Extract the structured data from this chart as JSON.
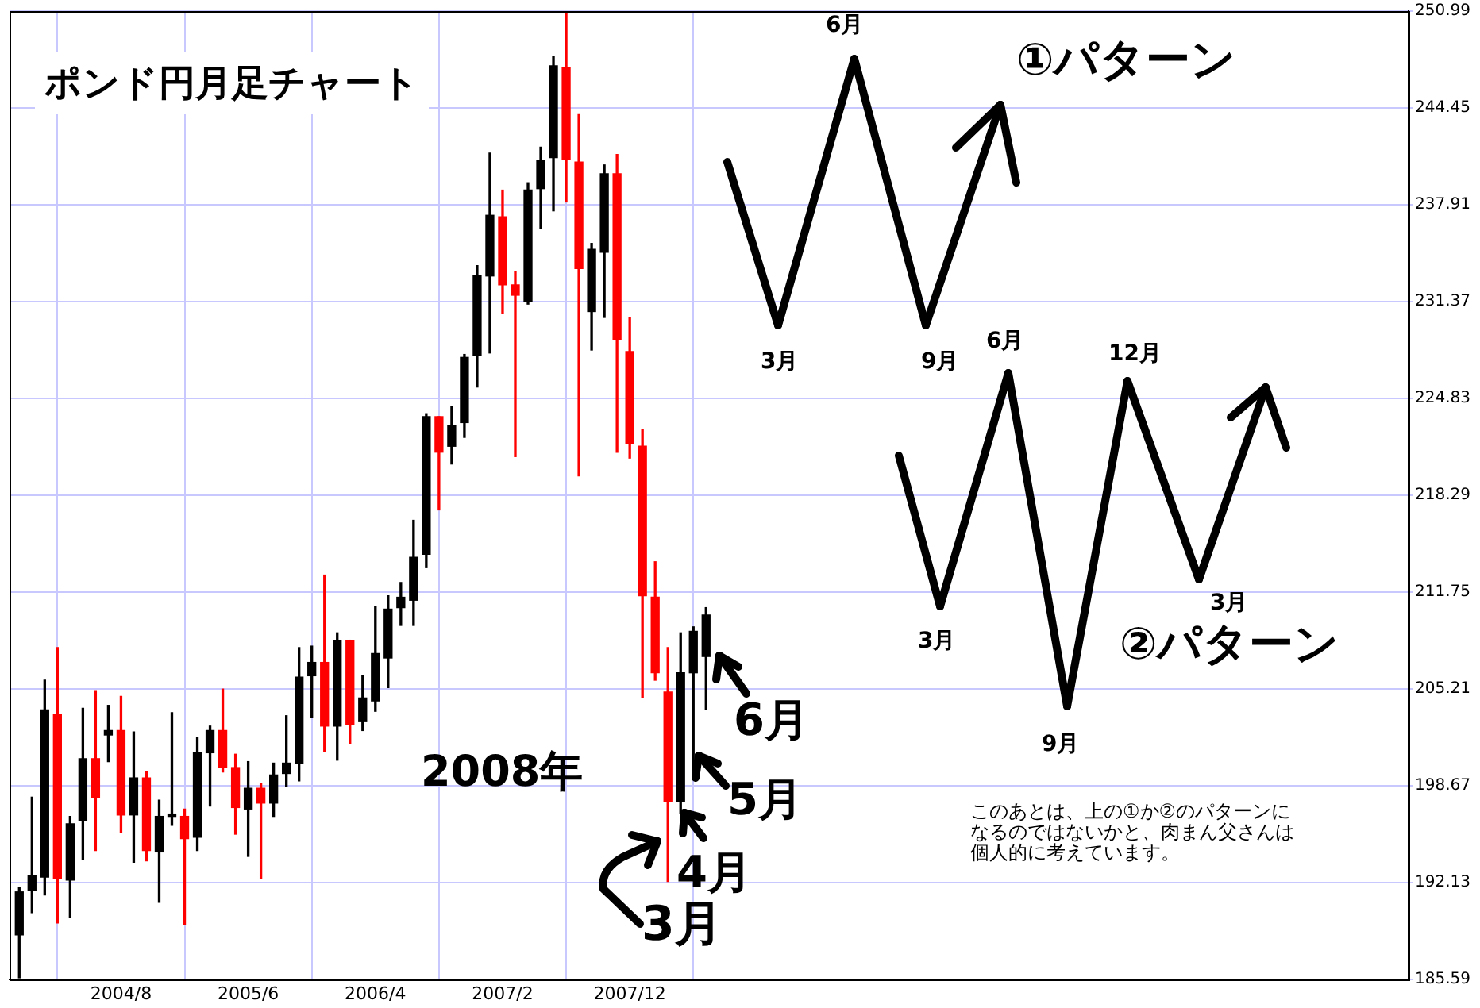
{
  "chart_data": {
    "type": "candlestick",
    "title": "ポンド円月足チャート",
    "x": [
      "2003-12",
      "2004-01",
      "2004-02",
      "2004-03",
      "2004-04",
      "2004-05",
      "2004-06",
      "2004-07",
      "2004-08",
      "2004-09",
      "2004-10",
      "2004-11",
      "2004-12",
      "2005-01",
      "2005-02",
      "2005-03",
      "2005-04",
      "2005-05",
      "2005-06",
      "2005-07",
      "2005-08",
      "2005-09",
      "2005-10",
      "2005-11",
      "2005-12",
      "2006-01",
      "2006-02",
      "2006-03",
      "2006-04",
      "2006-05",
      "2006-06",
      "2006-07",
      "2006-08",
      "2006-09",
      "2006-10",
      "2006-11",
      "2006-12",
      "2007-01",
      "2007-02",
      "2007-03",
      "2007-04",
      "2007-05",
      "2007-06",
      "2007-07",
      "2007-08",
      "2007-09",
      "2007-10",
      "2007-11",
      "2007-12",
      "2008-01",
      "2008-02",
      "2008-03",
      "2008-04",
      "2008-05",
      "2008-06"
    ],
    "ohlc": [
      [
        188.6,
        191.8,
        185.7,
        191.5
      ],
      [
        191.6,
        197.9,
        190.1,
        192.6
      ],
      [
        192.5,
        205.8,
        191.3,
        203.8
      ],
      [
        203.5,
        208.0,
        189.4,
        192.4
      ],
      [
        192.3,
        196.6,
        189.8,
        196.1
      ],
      [
        196.3,
        203.9,
        193.7,
        200.5
      ],
      [
        200.5,
        205.1,
        194.3,
        197.9
      ],
      [
        202.1,
        204.1,
        200.3,
        202.4
      ],
      [
        202.4,
        204.7,
        195.5,
        196.7
      ],
      [
        196.7,
        202.3,
        193.5,
        199.2
      ],
      [
        199.2,
        199.6,
        193.6,
        194.3
      ],
      [
        194.2,
        197.7,
        190.8,
        196.6
      ],
      [
        196.6,
        203.6,
        196.0,
        196.6
      ],
      [
        196.6,
        197.1,
        189.3,
        195.1
      ],
      [
        195.2,
        201.9,
        194.3,
        200.9
      ],
      [
        200.9,
        202.7,
        197.3,
        202.4
      ],
      [
        202.4,
        205.2,
        199.6,
        199.9
      ],
      [
        199.9,
        200.8,
        195.4,
        197.2
      ],
      [
        197.1,
        200.3,
        193.9,
        198.5
      ],
      [
        198.5,
        198.8,
        192.4,
        197.5
      ],
      [
        197.5,
        200.2,
        196.6,
        199.4
      ],
      [
        199.5,
        203.4,
        198.6,
        200.2
      ],
      [
        200.2,
        208.0,
        199.0,
        206.0
      ],
      [
        206.1,
        208.1,
        203.3,
        207.0
      ],
      [
        207.0,
        212.9,
        201.0,
        202.7
      ],
      [
        202.7,
        209.0,
        200.4,
        208.5
      ],
      [
        208.5,
        208.5,
        201.5,
        202.8
      ],
      [
        203.0,
        206.1,
        202.4,
        204.6
      ],
      [
        204.4,
        210.8,
        203.7,
        207.6
      ],
      [
        207.3,
        211.5,
        205.3,
        210.6
      ],
      [
        210.7,
        212.4,
        209.5,
        211.4
      ],
      [
        211.2,
        216.6,
        209.5,
        214.1
      ],
      [
        214.3,
        223.8,
        213.4,
        223.6
      ],
      [
        223.6,
        223.6,
        217.3,
        221.2
      ],
      [
        221.6,
        224.3,
        220.4,
        223.0
      ],
      [
        223.2,
        227.8,
        222.2,
        227.6
      ],
      [
        227.7,
        233.8,
        225.6,
        233.1
      ],
      [
        233.1,
        241.4,
        227.9,
        237.2
      ],
      [
        237.1,
        238.9,
        230.6,
        232.5
      ],
      [
        232.5,
        233.4,
        220.9,
        231.8
      ],
      [
        231.4,
        239.4,
        231.2,
        238.9
      ],
      [
        239.0,
        241.8,
        236.3,
        240.9
      ],
      [
        241.1,
        247.9,
        237.5,
        247.3
      ],
      [
        247.2,
        250.9,
        238.1,
        241.0
      ],
      [
        240.8,
        244.0,
        219.6,
        233.6
      ],
      [
        230.7,
        235.3,
        228.1,
        234.9
      ],
      [
        234.7,
        240.6,
        230.3,
        240.0
      ],
      [
        240.0,
        241.3,
        221.2,
        228.8
      ],
      [
        228.0,
        230.3,
        220.8,
        221.8
      ],
      [
        221.6,
        222.7,
        204.6,
        211.5
      ],
      [
        211.4,
        213.8,
        205.8,
        206.3
      ],
      [
        205.0,
        208.0,
        192.2,
        197.6
      ],
      [
        197.6,
        209.0,
        196.8,
        206.3
      ],
      [
        206.3,
        209.4,
        199.7,
        209.1
      ],
      [
        207.4,
        210.7,
        203.8,
        210.2
      ]
    ],
    "colors": [
      "#000000",
      "#000000",
      "#000000",
      "#ff0000",
      "#000000",
      "#000000",
      "#ff0000",
      "#000000",
      "#ff0000",
      "#000000",
      "#ff0000",
      "#000000",
      "#000000",
      "#ff0000",
      "#000000",
      "#000000",
      "#ff0000",
      "#ff0000",
      "#000000",
      "#ff0000",
      "#000000",
      "#000000",
      "#000000",
      "#000000",
      "#ff0000",
      "#000000",
      "#ff0000",
      "#000000",
      "#000000",
      "#000000",
      "#000000",
      "#000000",
      "#000000",
      "#ff0000",
      "#000000",
      "#000000",
      "#000000",
      "#000000",
      "#ff0000",
      "#ff0000",
      "#000000",
      "#000000",
      "#000000",
      "#ff0000",
      "#ff0000",
      "#000000",
      "#000000",
      "#ff0000",
      "#ff0000",
      "#ff0000",
      "#ff0000",
      "#ff0000",
      "#000000",
      "#000000",
      "#000000"
    ],
    "xlim": [
      "2003-11-08",
      "2013-01-08"
    ],
    "xticks": [
      {
        "value": "2004-08",
        "label": "2004/8"
      },
      {
        "value": "2005-06",
        "label": "2005/6"
      },
      {
        "value": "2006-04",
        "label": "2006/4"
      },
      {
        "value": "2007-02",
        "label": "2007/2"
      },
      {
        "value": "2007-12",
        "label": "2007/12"
      }
    ],
    "ylim": [
      185.59,
      250.99
    ],
    "yticks": [
      185.59,
      192.13,
      198.67,
      205.21,
      211.75,
      218.29,
      224.83,
      231.37,
      237.91,
      244.45,
      250.99
    ],
    "grid": true,
    "annotations": [
      "2008年",
      "3月",
      "4月",
      "5月",
      "6月",
      "①パターン",
      "6月",
      "3月",
      "9月",
      "②パターン",
      "6月",
      "12月",
      "3月",
      "3月",
      "9月",
      "このあとは、上の①か②のパターンになるのではないかと、肉まん父さんは個人的に考えています。"
    ]
  }
}
